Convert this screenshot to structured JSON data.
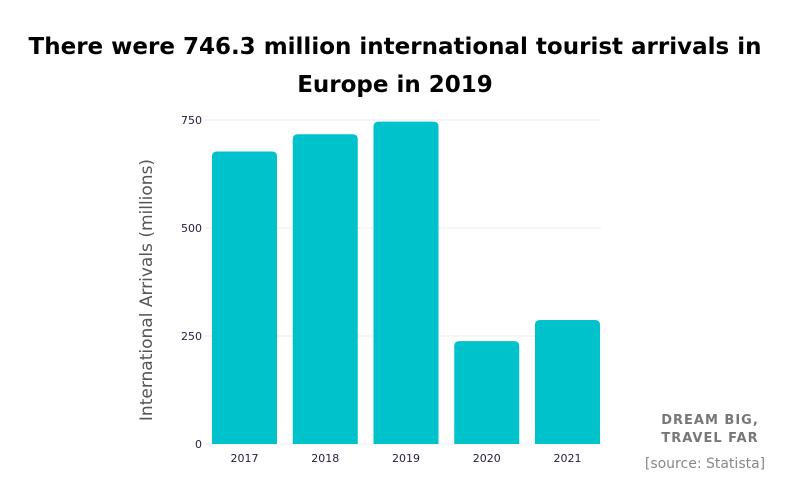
{
  "chart_data": {
    "type": "bar",
    "title": "There were 746.3 million international tourist arrivals in Europe in 2019",
    "categories": [
      "2017",
      "2018",
      "2019",
      "2020",
      "2021"
    ],
    "values": [
      677,
      717,
      746.3,
      238,
      287
    ],
    "xlabel": "",
    "ylabel": "International Arrivals (millions)",
    "ylim": [
      0,
      750
    ],
    "yticks": [
      "0",
      "250",
      "500",
      "750"
    ],
    "grid": true,
    "bar_color": "#00c2cb"
  },
  "branding": {
    "line1": "DREAM BIG,",
    "line2": "TRAVEL FAR"
  },
  "source": "[source: Statista]"
}
